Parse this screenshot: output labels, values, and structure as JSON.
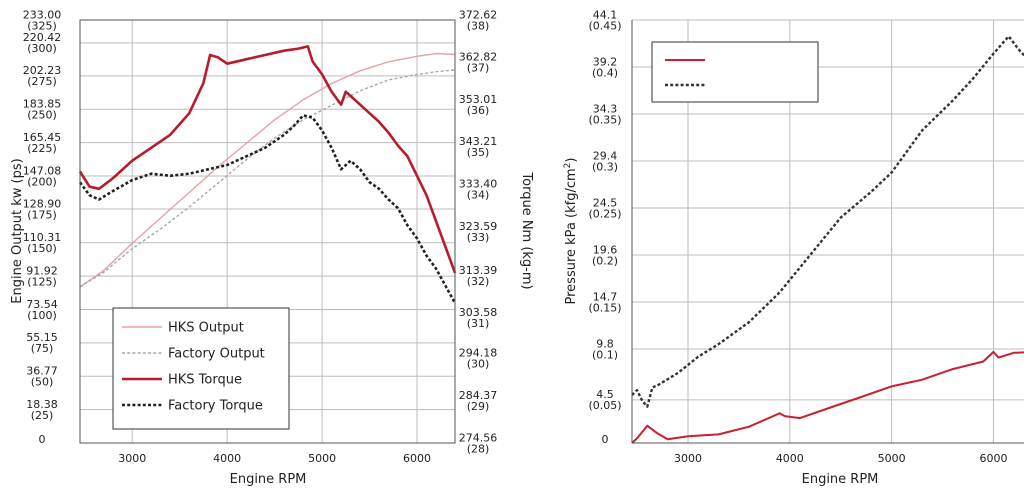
{
  "chart_data": [
    {
      "type": "line",
      "xlabel": "Engine RPM",
      "ylabel_left": "Engine Output kw (ps)",
      "ylabel_right": "Torque Nm (kg-m)",
      "xlim": [
        2450,
        6400
      ],
      "x_ticks": [
        3000,
        4000,
        5000,
        6000
      ],
      "ylim_left": [
        0,
        233
      ],
      "ylim_right": [
        274.56,
        372.62
      ],
      "grid": true,
      "legend_position": "bottom-left",
      "left_ticks": [
        {
          "value": 0,
          "line1": "0",
          "line2": ""
        },
        {
          "value": 18.38,
          "line1": "18.38",
          "line2": "(25)"
        },
        {
          "value": 36.77,
          "line1": "36.77",
          "line2": "(50)"
        },
        {
          "value": 55.15,
          "line1": "55.15",
          "line2": "(75)"
        },
        {
          "value": 73.54,
          "line1": "73.54",
          "line2": "(100)"
        },
        {
          "value": 91.92,
          "line1": "91.92",
          "line2": "(125)"
        },
        {
          "value": 110.31,
          "line1": "110.31",
          "line2": "(150)"
        },
        {
          "value": 128.9,
          "line1": "128.90",
          "line2": "(175)"
        },
        {
          "value": 147.08,
          "line1": "147.08",
          "line2": "(200)"
        },
        {
          "value": 165.45,
          "line1": "165.45",
          "line2": "(225)"
        },
        {
          "value": 183.85,
          "line1": "183.85",
          "line2": "(250)"
        },
        {
          "value": 202.23,
          "line1": "202.23",
          "line2": "(275)"
        },
        {
          "value": 220.42,
          "line1": "220.42",
          "line2": "(300)"
        },
        {
          "value": 233.0,
          "line1": "233.00",
          "line2": "(325)"
        }
      ],
      "right_ticks": [
        {
          "value": 274.56,
          "line1": "274.56",
          "line2": "(28)"
        },
        {
          "value": 284.37,
          "line1": "284.37",
          "line2": "(29)"
        },
        {
          "value": 294.18,
          "line1": "294.18",
          "line2": "(30)"
        },
        {
          "value": 303.58,
          "line1": "303.58",
          "line2": "(31)"
        },
        {
          "value": 313.39,
          "line1": "313.39",
          "line2": "(32)"
        },
        {
          "value": 323.59,
          "line1": "323.59",
          "line2": "(33)"
        },
        {
          "value": 333.4,
          "line1": "333.40",
          "line2": "(34)"
        },
        {
          "value": 343.21,
          "line1": "343.21",
          "line2": "(35)"
        },
        {
          "value": 353.01,
          "line1": "353.01",
          "line2": "(36)"
        },
        {
          "value": 362.82,
          "line1": "362.82",
          "line2": "(37)"
        },
        {
          "value": 372.62,
          "line1": "372.62",
          "line2": "(38)"
        }
      ],
      "series": [
        {
          "name": "HKS Output",
          "axis": "left",
          "color": "#e8a0a8",
          "style": "solid",
          "x": [
            2450,
            2700,
            3000,
            3300,
            3600,
            3900,
            4200,
            4500,
            4800,
            5100,
            5400,
            5700,
            6000,
            6200,
            6400
          ],
          "y": [
            86,
            95,
            110,
            124,
            138,
            152,
            165,
            178,
            189,
            198,
            205,
            210,
            213,
            214.5,
            214
          ]
        },
        {
          "name": "Factory Output",
          "axis": "left",
          "color": "#a8a8a8",
          "style": "dotted",
          "x": [
            2450,
            2700,
            3000,
            3300,
            3600,
            3900,
            4200,
            4500,
            4800,
            5100,
            5400,
            5700,
            6000,
            6200,
            6400
          ],
          "y": [
            86,
            94,
            107,
            118,
            130,
            143,
            156,
            168,
            178,
            186,
            194,
            200,
            203,
            204.5,
            205.5
          ]
        },
        {
          "name": "HKS Torque",
          "axis": "right",
          "color": "#b81c2a",
          "style": "solid",
          "x": [
            2450,
            2550,
            2650,
            2800,
            3000,
            3200,
            3400,
            3600,
            3750,
            3820,
            3900,
            4000,
            4200,
            4400,
            4600,
            4750,
            4850,
            4900,
            5000,
            5100,
            5200,
            5250,
            5300,
            5400,
            5500,
            5600,
            5700,
            5800,
            5900,
            6000,
            6100,
            6200,
            6300,
            6400
          ],
          "y": [
            337.5,
            334,
            333.5,
            336,
            340,
            343,
            346,
            351,
            358,
            364.5,
            364,
            362.5,
            363.5,
            364.5,
            365.5,
            366,
            366.5,
            363,
            360,
            356,
            353,
            356,
            355,
            353,
            351,
            349,
            346.5,
            343.5,
            341,
            336.5,
            332,
            326,
            320,
            314
          ]
        },
        {
          "name": "Factory Torque",
          "axis": "right",
          "color": "#222222",
          "style": "dotted",
          "x": [
            2450,
            2550,
            2650,
            2800,
            3000,
            3200,
            3400,
            3600,
            3800,
            4000,
            4200,
            4400,
            4600,
            4700,
            4800,
            4900,
            5000,
            5100,
            5200,
            5300,
            5400,
            5500,
            5600,
            5700,
            5800,
            5900,
            6000,
            6100,
            6200,
            6300,
            6400
          ],
          "y": [
            335,
            332,
            331,
            333,
            335.5,
            337,
            336.5,
            337,
            338,
            339,
            341,
            343,
            346,
            348,
            350.5,
            350,
            347,
            343,
            338,
            340,
            338,
            335,
            333.5,
            331,
            329,
            325,
            322,
            318,
            315,
            311,
            307
          ]
        }
      ]
    },
    {
      "type": "line",
      "xlabel": "Engine RPM",
      "ylabel": "Pressure kPa (kfg/cm",
      "ylabel_sup": "2",
      "ylabel_close": ")",
      "xlim": [
        2450,
        6400
      ],
      "x_ticks": [
        3000,
        4000,
        5000,
        6000
      ],
      "ylim": [
        0,
        44.1
      ],
      "grid": true,
      "legend_position": "top-left",
      "y_ticks": [
        {
          "value": 0,
          "line1": "0",
          "line2": ""
        },
        {
          "value": 4.5,
          "line1": "4.5",
          "line2": "(0.05)"
        },
        {
          "value": 9.8,
          "line1": "9.8",
          "line2": "(0.1)"
        },
        {
          "value": 14.7,
          "line1": "14.7",
          "line2": "(0.15)"
        },
        {
          "value": 19.6,
          "line1": "19.6",
          "line2": "(0.2)"
        },
        {
          "value": 24.5,
          "line1": "24.5",
          "line2": "(0.25)"
        },
        {
          "value": 29.4,
          "line1": "29.4",
          "line2": "(0.3)"
        },
        {
          "value": 34.3,
          "line1": "34.3",
          "line2": "(0.35)"
        },
        {
          "value": 39.2,
          "line1": "39.2",
          "line2": "(0.4)"
        },
        {
          "value": 44.1,
          "line1": "44.1",
          "line2": "(0.45)"
        }
      ],
      "series": [
        {
          "name": "",
          "color": "#c8202e",
          "style": "solid",
          "x": [
            2450,
            2500,
            2600,
            2700,
            2800,
            3000,
            3300,
            3600,
            3900,
            3950,
            4100,
            4400,
            4700,
            5000,
            5300,
            5600,
            5900,
            6000,
            6050,
            6200,
            6400
          ],
          "y": [
            0,
            0.5,
            1.8,
            1.0,
            0.4,
            0.7,
            0.9,
            1.7,
            3.1,
            2.8,
            2.6,
            3.7,
            4.8,
            5.9,
            6.6,
            7.7,
            8.5,
            9.5,
            8.9,
            9.4,
            9.5
          ]
        },
        {
          "name": "",
          "color": "#333333",
          "style": "dotted",
          "x": [
            2450,
            2500,
            2550,
            2600,
            2650,
            2700,
            2900,
            3100,
            3300,
            3600,
            3900,
            4200,
            4500,
            4800,
            5000,
            5300,
            5600,
            5800,
            6000,
            6100,
            6150,
            6250,
            6400
          ],
          "y": [
            5.0,
            5.5,
            4.4,
            3.8,
            5.8,
            6.0,
            7.3,
            9.0,
            10.3,
            12.6,
            15.7,
            19.6,
            23.5,
            26.2,
            28.2,
            32.6,
            35.7,
            38.0,
            40.6,
            41.8,
            42.4,
            41.0,
            39.3
          ]
        }
      ]
    }
  ]
}
